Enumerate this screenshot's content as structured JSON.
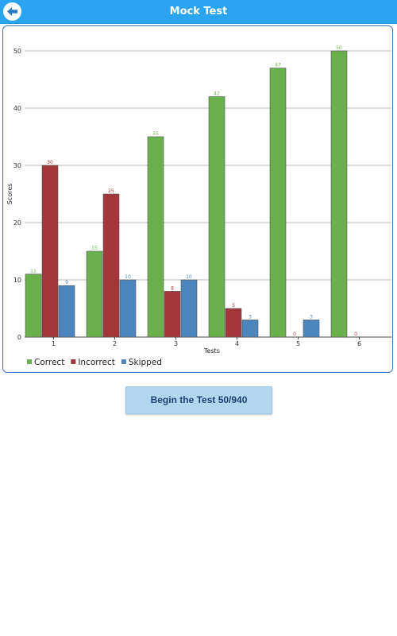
{
  "header": {
    "title": "Mock Test",
    "back_icon": "arrow-left-icon",
    "color": "#2aa3f0"
  },
  "chart_data": {
    "type": "bar",
    "categories": [
      "1",
      "2",
      "3",
      "4",
      "5",
      "6"
    ],
    "series": [
      {
        "name": "Correct",
        "color": "#6ab04c",
        "values": [
          11,
          15,
          35,
          42,
          47,
          50
        ]
      },
      {
        "name": "Incorrect",
        "color": "#a3363a",
        "values": [
          30,
          25,
          8,
          5,
          0,
          0
        ]
      },
      {
        "name": "Skipped",
        "color": "#4c86bc",
        "values": [
          9,
          10,
          10,
          3,
          3,
          null
        ]
      }
    ],
    "yticks": [
      0,
      10,
      20,
      30,
      40,
      50
    ],
    "ylim": [
      0,
      50
    ],
    "xlabel": "Tests",
    "ylabel": "Scores",
    "grid": true,
    "legend_position": "bottom-left"
  },
  "action": {
    "begin_label": "Begin the Test 50/940"
  }
}
